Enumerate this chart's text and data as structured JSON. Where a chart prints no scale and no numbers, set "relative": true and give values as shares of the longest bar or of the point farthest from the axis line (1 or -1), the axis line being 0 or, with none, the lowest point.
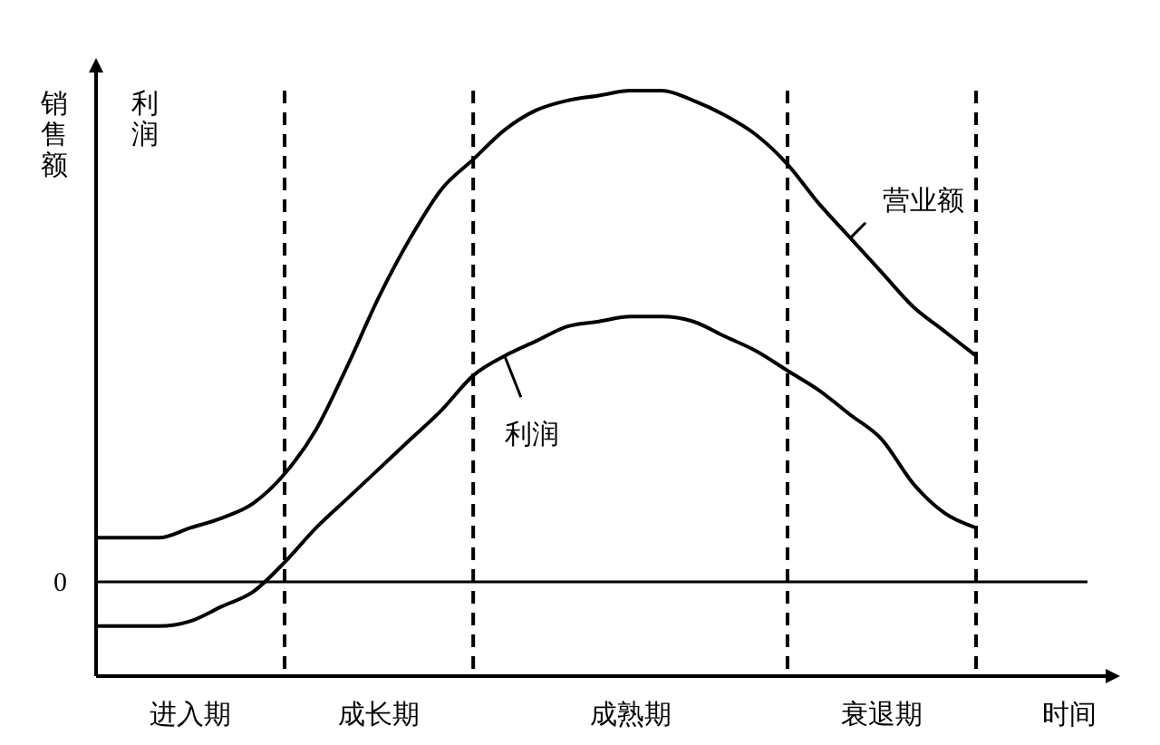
{
  "chart_data": {
    "type": "line",
    "relative": true,
    "ylabel": "销售额",
    "xlabel": "时间",
    "categories": [
      null,
      null,
      null,
      "进入期",
      null,
      null,
      null,
      null,
      null,
      "成长期",
      null,
      null,
      null,
      null,
      null,
      null,
      null,
      "成熟期",
      null,
      null,
      null,
      null,
      null,
      null,
      null,
      "衰退期",
      null,
      null,
      null
    ],
    "annotations": [
      "利润",
      "0"
    ],
    "grid": "x",
    "series": [
      {
        "name": "营业额",
        "color": "#000000",
        "values": [
          0.09,
          0.09,
          0.09,
          0.11,
          0.13,
          0.16,
          0.22,
          0.31,
          0.44,
          0.58,
          0.7,
          0.8,
          0.86,
          0.92,
          0.96,
          0.98,
          0.99,
          1,
          1,
          0.98,
          0.95,
          0.91,
          0.85,
          0.77,
          0.7,
          0.63,
          0.56,
          0.51,
          0.46
        ]
      },
      {
        "name": "利润",
        "color": "#000000",
        "values": [
          -0.09,
          -0.09,
          -0.09,
          -0.08,
          -0.05,
          -0.02,
          0.04,
          0.11,
          0.17,
          0.23,
          0.29,
          0.35,
          0.42,
          0.46,
          0.49,
          0.52,
          0.53,
          0.54,
          0.54,
          0.53,
          0.5,
          0.47,
          0.43,
          0.39,
          0.34,
          0.29,
          0.2,
          0.14,
          0.11
        ]
      }
    ]
  }
}
